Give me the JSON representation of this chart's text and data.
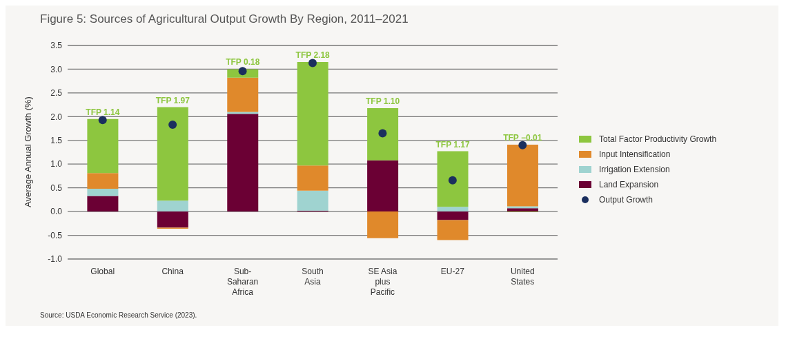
{
  "chart_data": {
    "type": "bar",
    "title": "Figure 5: Sources of Agricultural Output Growth By Region, 2011–2021",
    "ylabel": "Average Annual Growth (%)",
    "categories": [
      "Global",
      "China",
      "Sub-Saharan Africa",
      "South Asia",
      "SE Asia plus Pacific",
      "EU-27",
      "United States"
    ],
    "stacked": true,
    "series": [
      {
        "name": "Land Expansion",
        "color": "#6b0034",
        "values": [
          0.33,
          -0.34,
          2.06,
          0.02,
          1.08,
          -0.18,
          0.07
        ]
      },
      {
        "name": "Irrigation Extension",
        "color": "#9fd3d0",
        "values": [
          0.15,
          0.23,
          0.04,
          0.42,
          0,
          0.1,
          0.04
        ]
      },
      {
        "name": "Input Intensification",
        "color": "#e0892b",
        "values": [
          0.33,
          -0.02,
          0.72,
          0.53,
          -0.56,
          -0.42,
          1.3
        ]
      },
      {
        "name": "Total Factor Productivity Growth",
        "color": "#8dc63f",
        "values": [
          1.14,
          1.97,
          0.18,
          2.18,
          1.1,
          1.17,
          -0.01
        ],
        "value_labels": [
          "TFP 1.14",
          "TFP 1.97",
          "TFP 0.18",
          "TFP 2.18",
          "TFP 1.10",
          "TFP 1.17",
          null
        ]
      },
      {
        "name": "Output Growth",
        "type": "scatter",
        "color": "#1b2f5e",
        "x": [
          "Global",
          "China",
          "Sub-Saharan Africa",
          "South Asia",
          "SE Asia plus Pacific",
          "EU-27",
          "United States"
        ],
        "values": [
          1.93,
          1.83,
          2.96,
          3.13,
          1.65,
          0.66,
          1.4
        ]
      }
    ],
    "ylim": [
      -1,
      3.5
    ],
    "yticks": [
      3.5,
      {
        "value": 3,
        "label": "3.0"
      },
      2.5,
      {
        "value": 2,
        "label": "2.0"
      },
      1.5,
      {
        "value": 1,
        "label": "1.0"
      },
      0.5,
      {
        "value": 0,
        "label": "0.0"
      },
      -0.5,
      {
        "value": -1,
        "label": "-1.0"
      }
    ],
    "grid": "y",
    "legend": "right",
    "marker": "circle",
    "annotations": [
      {
        "text": "TFP −0.01",
        "x": "United States",
        "y": 1.41
      },
      "Source: USDA Economic Research Service (2023)."
    ]
  }
}
